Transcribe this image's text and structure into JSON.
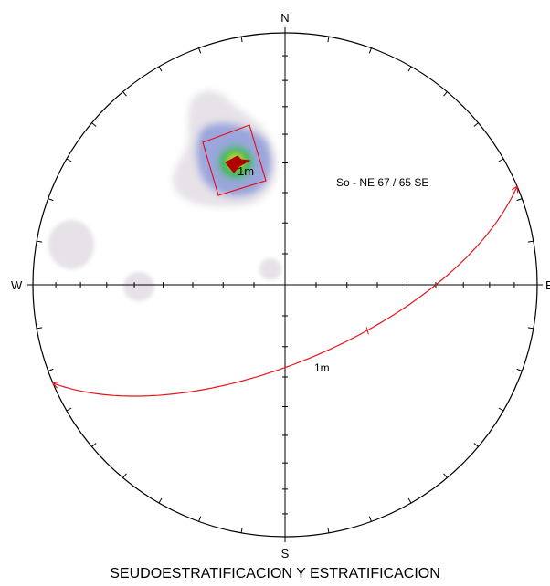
{
  "title": "SEUDOESTRATIFICACION Y ESTRATIFICACION",
  "directions": {
    "north": "N",
    "south": "S",
    "west": "W",
    "east": "E"
  },
  "plane_annotation": "So - NE 67 / 65 SE",
  "pole_label": "1m",
  "great_circle_label": "1m",
  "colors": {
    "outline": "#000000",
    "plane": "#e8141c",
    "pole_marker": "#b00000",
    "density_low": "#e6e2e8",
    "density_mid": "#9aa6dc",
    "density_high": "#2db84a",
    "density_peak": "#d9e020"
  },
  "chart_data": {
    "type": "stereonet",
    "projection": "equal-area, lower hemisphere",
    "mean_plane": {
      "strike_deg": 67,
      "dip_deg": 65,
      "dip_direction": "SE",
      "set_label": "1m"
    },
    "pole": {
      "trend_deg": 337,
      "plunge_deg": 25
    }
  }
}
